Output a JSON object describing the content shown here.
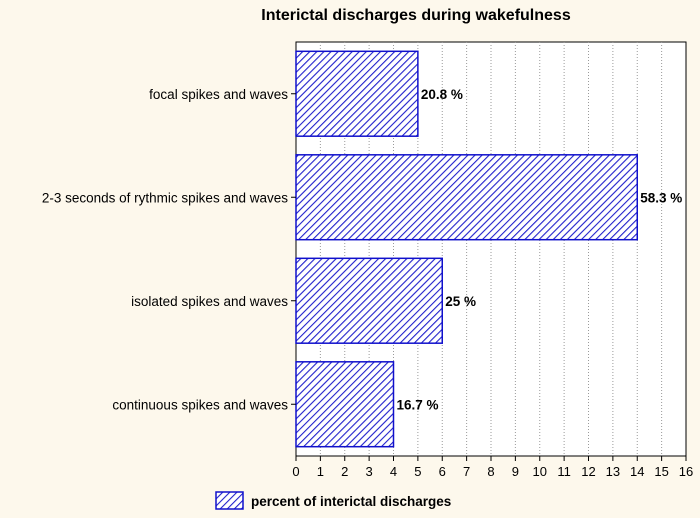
{
  "chart_data": {
    "type": "bar",
    "orientation": "horizontal",
    "title": "Interictal discharges during wakefulness",
    "categories": [
      "focal spikes and waves",
      "2-3 seconds of rythmic spikes and waves",
      "isolated spikes and waves",
      "continuous spikes and waves"
    ],
    "series": [
      {
        "name": "percent of interictal discharges",
        "values": [
          5,
          14,
          6,
          4
        ],
        "labels": [
          "20.8 %",
          "58.3 %",
          "25 %",
          "16.7 %"
        ]
      }
    ],
    "xlim": [
      0,
      16
    ],
    "xticks": [
      "0",
      "1",
      "2",
      "3",
      "4",
      "5",
      "6",
      "7",
      "8",
      "9",
      "10",
      "11",
      "12",
      "13",
      "14",
      "15",
      "16"
    ],
    "grid": "vertical dotted",
    "legend": "bottom",
    "colors": {
      "bar_stroke": "#1010cc",
      "hatch": "#2020cc",
      "bar_fill": "#ffffff",
      "background": "#fdf8ec"
    }
  }
}
